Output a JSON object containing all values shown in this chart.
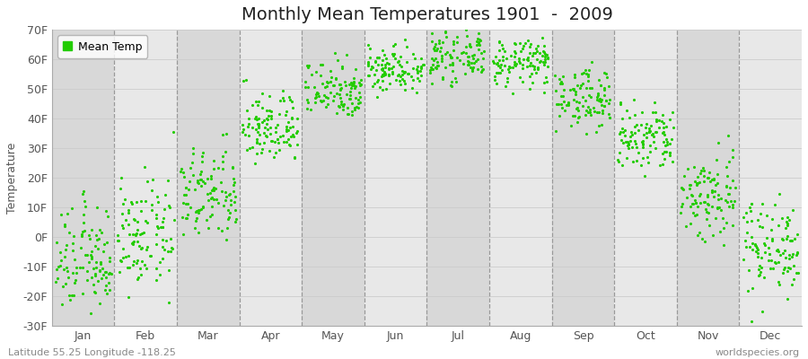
{
  "title": "Monthly Mean Temperatures 1901  -  2009",
  "ylabel": "Temperature",
  "ylim": [
    -30,
    70
  ],
  "yticks": [
    -30,
    -20,
    -10,
    0,
    10,
    20,
    30,
    40,
    50,
    60,
    70
  ],
  "ytick_labels": [
    "-30F",
    "-20F",
    "-10F",
    "0F",
    "10F",
    "20F",
    "30F",
    "40F",
    "50F",
    "60F",
    "70F"
  ],
  "months": [
    "Jan",
    "Feb",
    "Mar",
    "Apr",
    "May",
    "Jun",
    "Jul",
    "Aug",
    "Sep",
    "Oct",
    "Nov",
    "Dec"
  ],
  "dot_color": "#22cc00",
  "background_color": "#ffffff",
  "plot_bg_color": "#e8e8e8",
  "alt_band_color": "#d8d8d8",
  "grid_color": "#cccccc",
  "dash_color": "#999999",
  "title_fontsize": 14,
  "label_fontsize": 9,
  "tick_fontsize": 9,
  "legend_label": "Mean Temp",
  "lat_lon_text": "Latitude 55.25 Longitude -118.25",
  "watermark": "worldspecies.org",
  "mean_temps_f": [
    -8,
    0,
    14,
    37,
    50,
    57,
    61,
    59,
    47,
    33,
    14,
    -3
  ],
  "std_temps_f": [
    9,
    9,
    8,
    6,
    5,
    4,
    4,
    4,
    5,
    6,
    8,
    8
  ],
  "n_years": 109
}
